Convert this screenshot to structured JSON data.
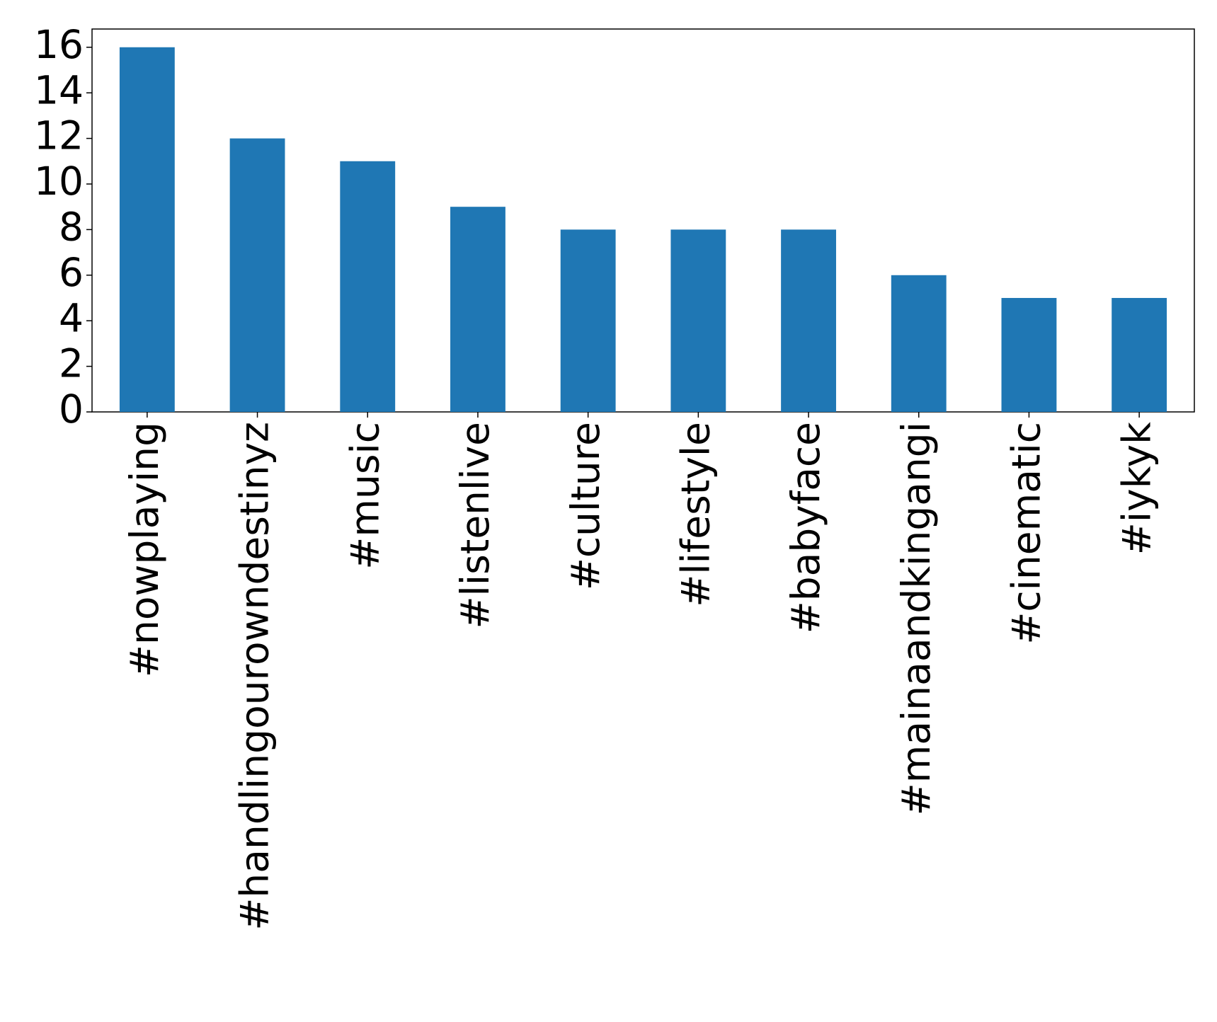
{
  "chart_data": {
    "type": "bar",
    "categories": [
      "#nowplaying",
      "#handlingourowndestinyz",
      "#music",
      "#listenlive",
      "#culture",
      "#lifestyle",
      "#babyface",
      "#mainaandkingangi",
      "#cinematic",
      "#iykyk"
    ],
    "values": [
      16,
      12,
      11,
      9,
      8,
      8,
      8,
      6,
      5,
      5
    ],
    "color": "#1f77b4",
    "ylim": [
      0,
      16.8
    ],
    "yticks": [
      0,
      2,
      4,
      6,
      8,
      10,
      12,
      14,
      16
    ],
    "grid": false
  }
}
